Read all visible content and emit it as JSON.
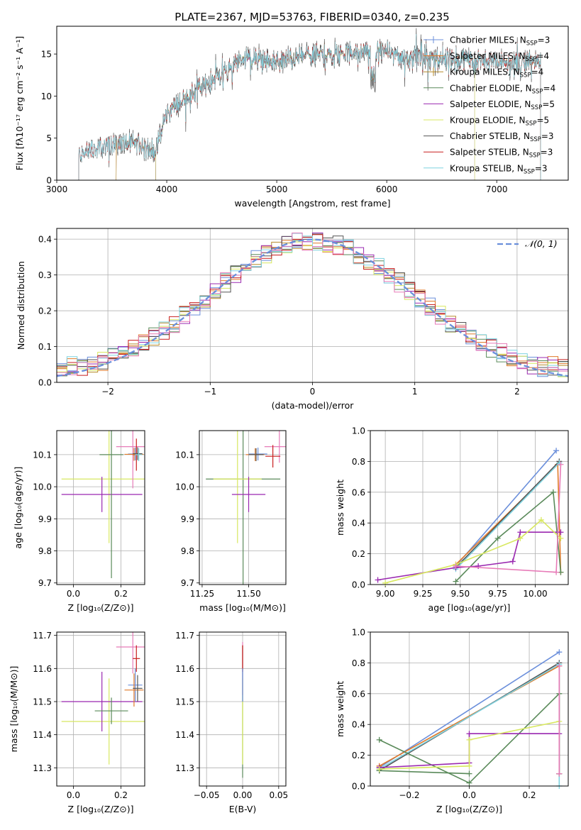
{
  "figure_title": "PLATE=2367, MJD=53763, FIBERID=0340, z=0.235",
  "colors": {
    "Chabrier MILES": "#6b8fdb",
    "Salpeter MILES": "#e07a2a",
    "Kroupa MILES": "#b58a2a",
    "Chabrier ELODIE": "#5a8a5a",
    "Salpeter ELODIE": "#9a28b0",
    "Kroupa ELODIE": "#d8e860",
    "Chabrier STELIB": "#555555",
    "Salpeter STELIB": "#c81e1e",
    "Kroupa STELIB": "#7fd3e0",
    "pink": "#e77bb8",
    "normal": "#6a8fdb"
  },
  "chart_data": [
    {
      "id": "spectrum",
      "type": "line",
      "xlabel": "wavelength [Angstrom, rest frame]",
      "ylabel": "Flux [fλ10⁻¹⁷ erg cm⁻² s⁻¹ A⁻¹]",
      "xlim": [
        3000,
        7650
      ],
      "ylim": [
        0,
        18.3
      ],
      "xticks": [
        3000,
        4000,
        5000,
        6000,
        7000
      ],
      "yticks": [
        0,
        5,
        10,
        15
      ],
      "grid": false,
      "legend_position": "right",
      "series": [
        {
          "name": "Chabrier MILES, N_SSP=3",
          "color_key": "Chabrier MILES",
          "marker": "+",
          "range": [
            3540,
            7400
          ]
        },
        {
          "name": "Salpeter MILES, N_SSP=4",
          "color_key": "Salpeter MILES",
          "marker": "",
          "range": [
            3540,
            7400
          ]
        },
        {
          "name": "Kroupa MILES, N_SSP=4",
          "color_key": "Kroupa MILES",
          "marker": "|",
          "range": [
            3540,
            7400
          ]
        },
        {
          "name": "Chabrier ELODIE, N_SSP=4",
          "color_key": "Chabrier ELODIE",
          "marker": "",
          "range": [
            3900,
            6800
          ]
        },
        {
          "name": "Salpeter ELODIE, N_SSP=5",
          "color_key": "Salpeter ELODIE",
          "marker": "",
          "range": [
            3900,
            6800
          ]
        },
        {
          "name": "Kroupa ELODIE, N_SSP=5",
          "color_key": "Kroupa ELODIE",
          "marker": "",
          "range": [
            3900,
            6800
          ]
        },
        {
          "name": "Chabrier STELIB, N_SSP=3",
          "color_key": "Chabrier STELIB",
          "marker": "",
          "range": [
            3200,
            7400
          ]
        },
        {
          "name": "Salpeter STELIB, N_SSP=3",
          "color_key": "Salpeter STELIB",
          "marker": "",
          "range": [
            3200,
            7400
          ]
        },
        {
          "name": "Kroupa STELIB, N_SSP=3",
          "color_key": "Kroupa STELIB",
          "marker": "",
          "range": [
            3200,
            7400
          ]
        }
      ],
      "continuum_knots": [
        [
          3200,
          3.0
        ],
        [
          3500,
          4.3
        ],
        [
          3700,
          4.5
        ],
        [
          3900,
          3.4
        ],
        [
          4000,
          8.0
        ],
        [
          4300,
          11.0
        ],
        [
          4500,
          12.5
        ],
        [
          4700,
          14.5
        ],
        [
          5000,
          14.0
        ],
        [
          5300,
          15.0
        ],
        [
          5600,
          15.0
        ],
        [
          5900,
          15.5
        ],
        [
          6200,
          14.5
        ],
        [
          6600,
          14.5
        ],
        [
          7000,
          14.0
        ],
        [
          7400,
          14.0
        ]
      ]
    },
    {
      "id": "residuals",
      "type": "histogram",
      "xlabel": "(data-model)/error",
      "ylabel": "Normed distribution",
      "xlim": [
        -2.5,
        2.5
      ],
      "ylim": [
        0,
        0.43
      ],
      "xticks": [
        -2,
        -1,
        0,
        1,
        2
      ],
      "yticks": [
        0.0,
        0.1,
        0.2,
        0.3,
        0.4
      ],
      "grid": true,
      "legend": "𝒩(0, 1)",
      "legend_position": "top-right",
      "bin_width": 0.1,
      "normal_curve": {
        "mu": 0,
        "sigma": 1
      }
    },
    {
      "id": "age_vs_Z",
      "type": "errorbar",
      "xlabel": "Z [log₁₀(Z/Z⊙)]",
      "ylabel": "age  [log₁₀(age/yr)]",
      "xlim": [
        -0.07,
        0.3
      ],
      "ylim": [
        9.695,
        10.175
      ],
      "xticks": [
        0.0,
        0.2
      ],
      "yticks": [
        9.7,
        9.8,
        9.9,
        10.0,
        10.1
      ],
      "grid": true,
      "points": [
        {
          "color_key": "Kroupa ELODIE",
          "x": 0.15,
          "xerr": 0.2,
          "y": 10.024,
          "yerr": 0.2
        },
        {
          "color_key": "Salpeter ELODIE",
          "x": 0.12,
          "xerr": 0.17,
          "y": 9.976,
          "yerr": 0.055
        },
        {
          "color_key": "Chabrier ELODIE",
          "x": 0.16,
          "xerr": 0.05,
          "y": 10.1,
          "yerr": 0.385
        },
        {
          "color_key": "pink",
          "x": 0.25,
          "xerr": 0.07,
          "y": 10.125,
          "yerr": 0.13
        },
        {
          "color_key": "Salpeter STELIB",
          "x": 0.265,
          "xerr": 0.015,
          "y": 10.1,
          "yerr": 0.05
        },
        {
          "color_key": "Chabrier MILES",
          "x": 0.26,
          "xerr": 0.03,
          "y": 10.102,
          "yerr": 0.02
        },
        {
          "color_key": "Salpeter MILES",
          "x": 0.255,
          "xerr": 0.04,
          "y": 10.101,
          "yerr": 0.02
        },
        {
          "color_key": "Chabrier STELIB",
          "x": 0.27,
          "xerr": 0.02,
          "y": 10.103,
          "yerr": 0.02
        },
        {
          "color_key": "Kroupa STELIB",
          "x": 0.275,
          "xerr": 0.015,
          "y": 10.1,
          "yerr": 0.02
        }
      ]
    },
    {
      "id": "age_vs_mass",
      "type": "errorbar",
      "xlabel": "mass [log₁₀(M/M⊙)]",
      "ylabel": "",
      "xlim": [
        11.235,
        11.7
      ],
      "ylim": [
        9.695,
        10.175
      ],
      "xticks": [
        11.25,
        11.5
      ],
      "yticks": [
        9.7,
        9.8,
        9.9,
        10.0,
        10.1
      ],
      "grid": true,
      "points": [
        {
          "color_key": "Chabrier ELODIE",
          "x": 11.47,
          "xerr": 0.2,
          "y": 10.024,
          "yerr": 0.385
        },
        {
          "color_key": "Kroupa ELODIE",
          "x": 11.44,
          "xerr": 0.13,
          "y": 10.024,
          "yerr": 0.2
        },
        {
          "color_key": "Salpeter ELODIE",
          "x": 11.5,
          "xerr": 0.09,
          "y": 9.976,
          "yerr": 0.055
        },
        {
          "color_key": "pink",
          "x": 11.665,
          "xerr": 0.08,
          "y": 10.125,
          "yerr": 0.05
        },
        {
          "color_key": "Salpeter STELIB",
          "x": 11.63,
          "xerr": 0.04,
          "y": 10.095,
          "yerr": 0.035
        },
        {
          "color_key": "Chabrier MILES",
          "x": 11.55,
          "xerr": 0.05,
          "y": 10.102,
          "yerr": 0.02
        },
        {
          "color_key": "Salpeter MILES",
          "x": 11.535,
          "xerr": 0.05,
          "y": 10.1,
          "yerr": 0.02
        },
        {
          "color_key": "Chabrier STELIB",
          "x": 11.54,
          "xerr": 0.04,
          "y": 10.1,
          "yerr": 0.02
        }
      ]
    },
    {
      "id": "weight_vs_age",
      "type": "line",
      "xlabel": "age  [log₁₀(age/yr)]",
      "ylabel": "mass weight",
      "xlim": [
        8.9,
        10.22
      ],
      "ylim": [
        0,
        1.0
      ],
      "xticks": [
        9.0,
        9.25,
        9.5,
        9.75,
        10.0
      ],
      "yticks": [
        0.0,
        0.2,
        0.4,
        0.6,
        0.8,
        1.0
      ],
      "grid": true,
      "series": [
        {
          "color_key": "Chabrier MILES",
          "x": [
            9.47,
            10.14
          ],
          "y": [
            0.12,
            0.87
          ]
        },
        {
          "color_key": "Salpeter MILES",
          "x": [
            9.47,
            10.15,
            10.17
          ],
          "y": [
            0.13,
            0.78,
            0.08
          ]
        },
        {
          "color_key": "Chabrier STELIB",
          "x": [
            9.47,
            10.16
          ],
          "y": [
            0.11,
            0.8
          ]
        },
        {
          "color_key": "Kroupa STELIB",
          "x": [
            9.47,
            10.16
          ],
          "y": [
            0.1,
            0.79
          ]
        },
        {
          "color_key": "Chabrier ELODIE",
          "x": [
            9.47,
            9.75,
            10.12,
            10.17
          ],
          "y": [
            0.02,
            0.3,
            0.6,
            0.08
          ]
        },
        {
          "color_key": "Salpeter ELODIE",
          "x": [
            8.95,
            9.47,
            9.62,
            9.85,
            9.9,
            10.17
          ],
          "y": [
            0.03,
            0.11,
            0.12,
            0.15,
            0.34,
            0.34
          ]
        },
        {
          "color_key": "Kroupa ELODIE",
          "x": [
            9.0,
            9.47,
            9.9,
            10.04,
            10.17
          ],
          "y": [
            0.01,
            0.13,
            0.3,
            0.42,
            0.3
          ]
        },
        {
          "color_key": "pink",
          "x": [
            9.47,
            10.14,
            10.17
          ],
          "y": [
            0.12,
            0.08,
            0.78
          ]
        }
      ]
    },
    {
      "id": "mass_vs_Z",
      "type": "errorbar",
      "xlabel": "Z [log₁₀(Z/Z⊙)]",
      "ylabel": "mass [log₁₀(M/M⊙)]",
      "xlim": [
        -0.07,
        0.3
      ],
      "ylim": [
        11.245,
        11.71
      ],
      "xticks": [
        0.0,
        0.2
      ],
      "yticks": [
        11.3,
        11.4,
        11.5,
        11.6,
        11.7
      ],
      "grid": true,
      "points": [
        {
          "color_key": "Kroupa ELODIE",
          "x": 0.15,
          "xerr": 0.2,
          "y": 11.44,
          "yerr": 0.13
        },
        {
          "color_key": "Salpeter ELODIE",
          "x": 0.12,
          "xerr": 0.17,
          "y": 11.5,
          "yerr": 0.09
        },
        {
          "color_key": "Chabrier ELODIE",
          "x": 0.16,
          "xerr": 0.07,
          "y": 11.472,
          "yerr": 0.04
        },
        {
          "color_key": "pink",
          "x": 0.25,
          "xerr": 0.07,
          "y": 11.665,
          "yerr": 0.08
        },
        {
          "color_key": "Salpeter STELIB",
          "x": 0.265,
          "xerr": 0.015,
          "y": 11.63,
          "yerr": 0.04
        },
        {
          "color_key": "Chabrier MILES",
          "x": 0.26,
          "xerr": 0.03,
          "y": 11.55,
          "yerr": 0.05
        },
        {
          "color_key": "Salpeter MILES",
          "x": 0.255,
          "xerr": 0.04,
          "y": 11.535,
          "yerr": 0.05
        },
        {
          "color_key": "Chabrier STELIB",
          "x": 0.27,
          "xerr": 0.02,
          "y": 11.54,
          "yerr": 0.04
        }
      ]
    },
    {
      "id": "mass_vs_ebv",
      "type": "errorbar",
      "xlabel": "E(B-V)",
      "ylabel": "",
      "xlim": [
        -0.06,
        0.06
      ],
      "ylim": [
        11.245,
        11.71
      ],
      "xticks": [
        -0.05,
        0.0,
        0.05
      ],
      "yticks": [
        11.3,
        11.4,
        11.5,
        11.6,
        11.7
      ],
      "grid": true,
      "points": [
        {
          "color_key": "Chabrier ELODIE",
          "x": 0.0,
          "xerr": 0.0,
          "y": 11.47,
          "yerr": 0.2
        },
        {
          "color_key": "Kroupa ELODIE",
          "x": 0.0,
          "xerr": 0.0,
          "y": 11.44,
          "yerr": 0.13
        },
        {
          "color_key": "pink",
          "x": 0.0,
          "xerr": 0.0,
          "y": 11.6,
          "yerr": 0.08
        },
        {
          "color_key": "Salpeter STELIB",
          "x": 0.0,
          "xerr": 0.0,
          "y": 11.63,
          "yerr": 0.04
        },
        {
          "color_key": "Chabrier MILES",
          "x": 0.0,
          "xerr": 0.0,
          "y": 11.55,
          "yerr": 0.05
        }
      ]
    },
    {
      "id": "weight_vs_Z",
      "type": "line",
      "xlabel": "Z [log₁₀(Z/Z⊙)]",
      "ylabel": "mass weight",
      "xlim": [
        -0.33,
        0.33
      ],
      "ylim": [
        0,
        1.0
      ],
      "xticks": [
        -0.2,
        0.0,
        0.2
      ],
      "yticks": [
        0.0,
        0.2,
        0.4,
        0.6,
        0.8,
        1.0
      ],
      "grid": true,
      "series": [
        {
          "color_key": "Chabrier MILES",
          "x": [
            -0.3,
            0.3
          ],
          "y": [
            0.12,
            0.87
          ]
        },
        {
          "color_key": "Salpeter MILES",
          "x": [
            -0.3,
            0.3,
            0.3
          ],
          "y": [
            0.13,
            0.78,
            0.08
          ]
        },
        {
          "color_key": "Chabrier STELIB",
          "x": [
            -0.3,
            0.3,
            0.3
          ],
          "y": [
            0.1,
            0.8,
            0.08
          ]
        },
        {
          "color_key": "Kroupa STELIB",
          "x": [
            -0.3,
            0.3,
            0.3
          ],
          "y": [
            0.11,
            0.79,
            0.0
          ]
        },
        {
          "color_key": "Chabrier ELODIE",
          "x": [
            -0.3,
            0.0,
            0.3,
            0.3
          ],
          "y": [
            0.3,
            0.02,
            0.6,
            0.08
          ]
        },
        {
          "color_key": "Chabrier ELODIE",
          "x": [
            -0.3,
            0.0
          ],
          "y": [
            0.1,
            0.08
          ]
        },
        {
          "color_key": "Salpeter ELODIE",
          "x": [
            -0.3,
            0.0,
            0.0,
            0.3
          ],
          "y": [
            0.12,
            0.15,
            0.34,
            0.34
          ]
        },
        {
          "color_key": "Kroupa ELODIE",
          "x": [
            -0.3,
            0.0,
            0.0,
            0.3
          ],
          "y": [
            0.11,
            0.13,
            0.3,
            0.42
          ]
        },
        {
          "color_key": "pink",
          "x": [
            0.3,
            0.3
          ],
          "y": [
            0.08,
            0.78
          ]
        }
      ]
    }
  ]
}
